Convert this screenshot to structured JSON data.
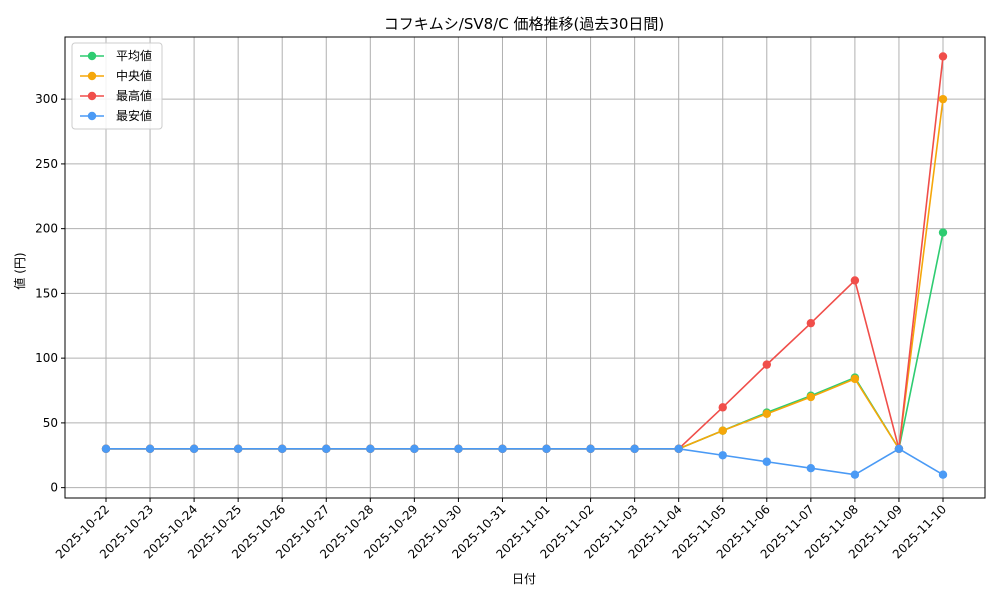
{
  "chart_data": {
    "type": "line",
    "title": "コフキムシ/SV8/C 価格推移(過去30日間)",
    "xlabel": "日付",
    "ylabel": "値 (円)",
    "x": [
      "2025-10-22",
      "2025-10-23",
      "2025-10-24",
      "2025-10-25",
      "2025-10-26",
      "2025-10-27",
      "2025-10-28",
      "2025-10-29",
      "2025-10-30",
      "2025-10-31",
      "2025-11-01",
      "2025-11-02",
      "2025-11-03",
      "2025-11-04",
      "2025-11-05",
      "2025-11-06",
      "2025-11-07",
      "2025-11-08",
      "2025-11-09",
      "2025-11-10"
    ],
    "ylim": [
      -8,
      348
    ],
    "yticks": [
      0,
      50,
      100,
      150,
      200,
      250,
      300
    ],
    "grid": true,
    "legend_position": "top-left",
    "series": [
      {
        "name": "平均値",
        "color": "#2ecc71",
        "values": [
          30,
          30,
          30,
          30,
          30,
          30,
          30,
          30,
          30,
          30,
          30,
          30,
          30,
          30,
          44,
          58,
          71,
          85,
          30,
          197
        ]
      },
      {
        "name": "中央値",
        "color": "#f5a70a",
        "values": [
          30,
          30,
          30,
          30,
          30,
          30,
          30,
          30,
          30,
          30,
          30,
          30,
          30,
          30,
          44,
          57,
          70,
          84,
          30,
          300
        ]
      },
      {
        "name": "最高値",
        "color": "#f04e4a",
        "values": [
          30,
          30,
          30,
          30,
          30,
          30,
          30,
          30,
          30,
          30,
          30,
          30,
          30,
          30,
          62,
          95,
          127,
          160,
          30,
          333
        ]
      },
      {
        "name": "最安値",
        "color": "#4a9af5",
        "values": [
          30,
          30,
          30,
          30,
          30,
          30,
          30,
          30,
          30,
          30,
          30,
          30,
          30,
          30,
          25,
          20,
          15,
          10,
          30,
          10
        ]
      }
    ]
  }
}
